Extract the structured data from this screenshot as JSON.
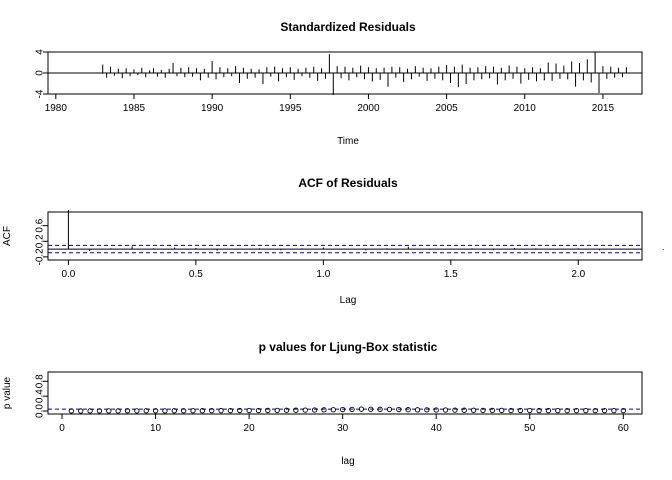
{
  "chart_data": [
    {
      "type": "line",
      "title": "Standardized Residuals",
      "xlabel": "Time",
      "ylabel": "",
      "xlim": [
        1979.5,
        2017.5
      ],
      "ylim": [
        -4,
        4
      ],
      "xticks": [
        "1980",
        "1985",
        "1990",
        "1995",
        "2000",
        "2005",
        "2010",
        "2015"
      ],
      "yticks": [
        "-4",
        "0",
        "4"
      ],
      "series": [
        {
          "style": "histogram-lines",
          "x_start": 1980.0,
          "x_end": 2017.0,
          "x_step": 0.25,
          "values": [
            0,
            0,
            0,
            0,
            0,
            0,
            0,
            0,
            0,
            0,
            0,
            0,
            1.6,
            -0.9,
            1.2,
            -0.5,
            0.8,
            -1.0,
            0.9,
            -0.6,
            0.7,
            -0.4,
            1.0,
            -0.8,
            0.5,
            0.9,
            -0.7,
            0.6,
            -0.9,
            0.8,
            1.9,
            -0.6,
            1.0,
            -0.8,
            1.1,
            -0.7,
            0.9,
            -1.4,
            0.8,
            -0.9,
            2.3,
            -1.2,
            1.1,
            -0.8,
            0.9,
            -0.6,
            1.3,
            -1.9,
            1.0,
            -1.1,
            0.8,
            -0.9,
            0.7,
            -2.1,
            1.1,
            -0.7,
            1.2,
            -1.6,
            0.9,
            -0.8,
            1.1,
            -1.3,
            0.8,
            -0.6,
            1.0,
            -0.9,
            1.2,
            -1.5,
            0.9,
            -1.1,
            3.6,
            -4.2,
            1.3,
            -1.0,
            1.2,
            -1.4,
            1.0,
            -0.8,
            1.4,
            -1.2,
            1.1,
            -1.6,
            0.9,
            -1.3,
            1.0,
            -2.6,
            1.2,
            -0.9,
            1.1,
            -1.7,
            0.8,
            -1.2,
            1.3,
            -0.7,
            1.0,
            -1.5,
            0.9,
            -1.1,
            1.2,
            -1.4,
            1.5,
            -1.9,
            1.2,
            -2.7,
            1.6,
            -2.1,
            1.0,
            -1.4,
            1.1,
            -1.2,
            1.3,
            -1.0,
            1.2,
            -2.2,
            1.0,
            -1.4,
            1.4,
            -1.1,
            1.2,
            -2.0,
            0.9,
            -1.3,
            1.1,
            -1.6,
            0.9,
            -1.4,
            2.0,
            -1.5,
            1.8,
            -1.1,
            1.4,
            -1.2,
            2.2,
            -2.6,
            1.9,
            -1.4,
            2.6,
            -1.8,
            4.0,
            -3.8,
            1.3,
            -1.1,
            1.2,
            -0.9,
            1.0,
            -0.8,
            1.1
          ]
        }
      ]
    },
    {
      "type": "bar",
      "title": "ACF of Residuals",
      "xlabel": "Lag",
      "ylabel": "ACF",
      "xlim": [
        -0.08,
        2.25
      ],
      "ylim": [
        -0.28,
        0.95
      ],
      "xticks": [
        "0.0",
        "0.5",
        "1.0",
        "1.5",
        "2.0"
      ],
      "yticks": [
        "-0.2",
        "0.2",
        "0.6"
      ],
      "confidence_band": [
        -0.095,
        0.095
      ],
      "lag_step": 0.0833333,
      "values": [
        1.0,
        -0.05,
        0.02,
        0.07,
        0.02,
        0.04,
        0.03,
        -0.04,
        0.01,
        0.02,
        -0.03,
        0.02,
        0.04,
        0.01,
        -0.03,
        0.02,
        0.06,
        -0.02,
        0.01,
        0.02,
        -0.03,
        0.03,
        0.02,
        -0.01,
        0.02,
        -0.03,
        0.01,
        0.04,
        -0.02,
        0.02,
        0.01
      ]
    },
    {
      "type": "scatter",
      "title": "p values for Ljung-Box statistic",
      "xlabel": "lag",
      "ylabel": "p value",
      "xlim": [
        -1.5,
        62
      ],
      "ylim": [
        -0.08,
        1.05
      ],
      "xticks": [
        "0",
        "10",
        "20",
        "30",
        "40",
        "50",
        "60"
      ],
      "yticks": [
        "0.0",
        "0.4",
        "0.8"
      ],
      "threshold": 0.05,
      "x_start": 1,
      "values": [
        0.003,
        0.002,
        0.004,
        0.003,
        0.005,
        0.004,
        0.006,
        0.005,
        0.007,
        0.006,
        0.005,
        0.006,
        0.008,
        0.007,
        0.009,
        0.01,
        0.012,
        0.011,
        0.013,
        0.015,
        0.014,
        0.016,
        0.018,
        0.02,
        0.022,
        0.025,
        0.028,
        0.032,
        0.035,
        0.04,
        0.045,
        0.05,
        0.048,
        0.046,
        0.044,
        0.04,
        0.036,
        0.032,
        0.03,
        0.028,
        0.026,
        0.024,
        0.022,
        0.02,
        0.018,
        0.017,
        0.016,
        0.015,
        0.014,
        0.013,
        0.012,
        0.012,
        0.011,
        0.011,
        0.01,
        0.01,
        0.01,
        0.01,
        0.01,
        0.01
      ]
    }
  ]
}
